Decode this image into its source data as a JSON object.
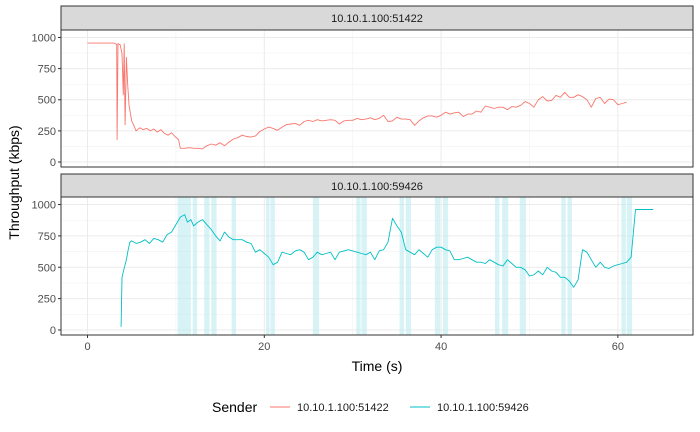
{
  "chart_data": {
    "type": "line",
    "facet_by": "Sender",
    "xlabel": "Time (s)",
    "ylabel": "Throughput (kbps)",
    "xlim": [
      -3,
      68.5
    ],
    "ylim": [
      -40,
      1060
    ],
    "x_ticks": [
      0,
      20,
      40,
      60
    ],
    "y_ticks": [
      0,
      250,
      500,
      750,
      1000
    ],
    "grid": true,
    "legend": {
      "title": "Sender",
      "position": "bottom",
      "entries": [
        "10.10.1.100:51422",
        "10.10.1.100:59426"
      ]
    },
    "colors": {
      "10.10.1.100:51422": "#F8766D",
      "10.10.1.100:59426": "#00BFC4",
      "highlight": "#BDEBF0"
    },
    "panels": [
      {
        "strip_label": "10.10.1.100:51422",
        "series": {
          "name": "10.10.1.100:51422",
          "color": "#F8766D",
          "points": [
            [
              0,
              955
            ],
            [
              3,
              955
            ],
            [
              3.3,
              945
            ],
            [
              3.35,
              180
            ],
            [
              3.45,
              950
            ],
            [
              3.7,
              940
            ],
            [
              3.9,
              870
            ],
            [
              4.05,
              540
            ],
            [
              4.15,
              950
            ],
            [
              4.25,
              300
            ],
            [
              4.4,
              840
            ],
            [
              4.55,
              620
            ],
            [
              4.7,
              450
            ],
            [
              4.85,
              390
            ],
            [
              5,
              330
            ],
            [
              5.2,
              300
            ],
            [
              5.5,
              250
            ],
            [
              5.9,
              275
            ],
            [
              6.3,
              260
            ],
            [
              6.7,
              270
            ],
            [
              7.1,
              250
            ],
            [
              7.5,
              265
            ],
            [
              7.9,
              240
            ],
            [
              8.3,
              260
            ],
            [
              8.7,
              230
            ],
            [
              9.1,
              215
            ],
            [
              9.5,
              235
            ],
            [
              9.9,
              205
            ],
            [
              10.3,
              180
            ],
            [
              10.5,
              110
            ],
            [
              11,
              110
            ],
            [
              11.5,
              115
            ],
            [
              12,
              110
            ],
            [
              12.5,
              110
            ],
            [
              13,
              105
            ],
            [
              13.5,
              130
            ],
            [
              14,
              145
            ],
            [
              14.5,
              135
            ],
            [
              15,
              155
            ],
            [
              15.5,
              130
            ],
            [
              16,
              160
            ],
            [
              16.5,
              185
            ],
            [
              17,
              195
            ],
            [
              17.5,
              215
            ],
            [
              18,
              205
            ],
            [
              18.5,
              200
            ],
            [
              19,
              210
            ],
            [
              19.5,
              245
            ],
            [
              20,
              265
            ],
            [
              20.5,
              280
            ],
            [
              21,
              270
            ],
            [
              21.5,
              255
            ],
            [
              22,
              280
            ],
            [
              22.5,
              300
            ],
            [
              23,
              305
            ],
            [
              23.5,
              310
            ],
            [
              24,
              295
            ],
            [
              24.5,
              325
            ],
            [
              25,
              335
            ],
            [
              25.5,
              325
            ],
            [
              26,
              340
            ],
            [
              26.5,
              330
            ],
            [
              27,
              335
            ],
            [
              27.5,
              340
            ],
            [
              28,
              335
            ],
            [
              28.5,
              305
            ],
            [
              29,
              330
            ],
            [
              29.5,
              335
            ],
            [
              30,
              335
            ],
            [
              30.5,
              350
            ],
            [
              31,
              340
            ],
            [
              31.5,
              345
            ],
            [
              32,
              355
            ],
            [
              32.5,
              340
            ],
            [
              33,
              350
            ],
            [
              33.5,
              375
            ],
            [
              34,
              325
            ],
            [
              34.5,
              330
            ],
            [
              35,
              360
            ],
            [
              35.5,
              345
            ],
            [
              36,
              345
            ],
            [
              36.5,
              340
            ],
            [
              37,
              295
            ],
            [
              37.5,
              330
            ],
            [
              38,
              355
            ],
            [
              38.5,
              370
            ],
            [
              39,
              370
            ],
            [
              39.5,
              360
            ],
            [
              40,
              375
            ],
            [
              40.5,
              400
            ],
            [
              41,
              385
            ],
            [
              41.5,
              395
            ],
            [
              42,
              400
            ],
            [
              42.5,
              365
            ],
            [
              43,
              385
            ],
            [
              43.5,
              385
            ],
            [
              44,
              410
            ],
            [
              44.5,
              400
            ],
            [
              45,
              450
            ],
            [
              45.5,
              440
            ],
            [
              46,
              430
            ],
            [
              46.5,
              440
            ],
            [
              47,
              440
            ],
            [
              47.5,
              420
            ],
            [
              48,
              445
            ],
            [
              48.5,
              440
            ],
            [
              49,
              455
            ],
            [
              49.5,
              485
            ],
            [
              50,
              470
            ],
            [
              50.5,
              440
            ],
            [
              51,
              500
            ],
            [
              51.5,
              525
            ],
            [
              52,
              490
            ],
            [
              52.5,
              495
            ],
            [
              53,
              535
            ],
            [
              53.5,
              520
            ],
            [
              54,
              560
            ],
            [
              54.5,
              520
            ],
            [
              55,
              520
            ],
            [
              55.5,
              540
            ],
            [
              56,
              525
            ],
            [
              56.5,
              500
            ],
            [
              57,
              440
            ],
            [
              57.5,
              510
            ],
            [
              58,
              520
            ],
            [
              58.5,
              470
            ],
            [
              59,
              505
            ],
            [
              59.5,
              500
            ],
            [
              60,
              460
            ],
            [
              60.5,
              470
            ],
            [
              61,
              480
            ]
          ]
        }
      },
      {
        "strip_label": "10.10.1.100:59426",
        "series": {
          "name": "10.10.1.100:59426",
          "color": "#00BFC4",
          "points": [
            [
              3.8,
              25
            ],
            [
              3.9,
              420
            ],
            [
              4.1,
              480
            ],
            [
              4.4,
              560
            ],
            [
              4.6,
              640
            ],
            [
              4.8,
              700
            ],
            [
              5,
              710
            ],
            [
              5.5,
              690
            ],
            [
              6,
              700
            ],
            [
              6.5,
              720
            ],
            [
              7,
              690
            ],
            [
              7.5,
              730
            ],
            [
              8,
              720
            ],
            [
              8.5,
              700
            ],
            [
              9,
              760
            ],
            [
              9.5,
              780
            ],
            [
              10,
              840
            ],
            [
              10.5,
              900
            ],
            [
              11,
              920
            ],
            [
              11.3,
              860
            ],
            [
              11.7,
              880
            ],
            [
              12,
              830
            ],
            [
              12.5,
              860
            ],
            [
              13,
              880
            ],
            [
              13.5,
              840
            ],
            [
              14,
              800
            ],
            [
              14.5,
              750
            ],
            [
              15,
              710
            ],
            [
              15.5,
              780
            ],
            [
              16,
              740
            ],
            [
              16.5,
              720
            ],
            [
              17,
              720
            ],
            [
              17.5,
              720
            ],
            [
              18,
              700
            ],
            [
              18.5,
              690
            ],
            [
              19,
              620
            ],
            [
              19.5,
              640
            ],
            [
              20,
              610
            ],
            [
              20.5,
              580
            ],
            [
              21,
              520
            ],
            [
              21.5,
              540
            ],
            [
              22,
              620
            ],
            [
              22.5,
              610
            ],
            [
              23,
              600
            ],
            [
              23.5,
              630
            ],
            [
              24,
              640
            ],
            [
              24.5,
              620
            ],
            [
              25,
              560
            ],
            [
              25.5,
              580
            ],
            [
              26,
              620
            ],
            [
              26.5,
              600
            ],
            [
              27,
              610
            ],
            [
              27.5,
              620
            ],
            [
              28,
              560
            ],
            [
              28.5,
              620
            ],
            [
              29,
              630
            ],
            [
              29.5,
              640
            ],
            [
              30,
              630
            ],
            [
              30.5,
              620
            ],
            [
              31,
              610
            ],
            [
              31.5,
              600
            ],
            [
              32,
              620
            ],
            [
              32.5,
              560
            ],
            [
              33,
              630
            ],
            [
              33.5,
              640
            ],
            [
              34,
              700
            ],
            [
              34.5,
              890
            ],
            [
              35,
              830
            ],
            [
              35.5,
              780
            ],
            [
              36,
              640
            ],
            [
              36.5,
              620
            ],
            [
              37,
              600
            ],
            [
              37.5,
              640
            ],
            [
              38,
              610
            ],
            [
              38.5,
              580
            ],
            [
              39,
              640
            ],
            [
              39.5,
              660
            ],
            [
              40,
              660
            ],
            [
              40.5,
              640
            ],
            [
              41,
              630
            ],
            [
              41.5,
              560
            ],
            [
              42,
              560
            ],
            [
              42.5,
              570
            ],
            [
              43,
              580
            ],
            [
              43.5,
              560
            ],
            [
              44,
              540
            ],
            [
              44.5,
              540
            ],
            [
              45,
              530
            ],
            [
              45.5,
              560
            ],
            [
              46,
              540
            ],
            [
              46.5,
              520
            ],
            [
              47,
              510
            ],
            [
              47.5,
              560
            ],
            [
              48,
              530
            ],
            [
              48.5,
              500
            ],
            [
              49,
              500
            ],
            [
              49.5,
              480
            ],
            [
              50,
              430
            ],
            [
              50.5,
              440
            ],
            [
              51,
              470
            ],
            [
              51.5,
              440
            ],
            [
              52,
              500
            ],
            [
              52.5,
              470
            ],
            [
              53,
              460
            ],
            [
              53.5,
              420
            ],
            [
              54,
              420
            ],
            [
              54.5,
              390
            ],
            [
              55,
              340
            ],
            [
              55.5,
              400
            ],
            [
              56,
              640
            ],
            [
              56.5,
              620
            ],
            [
              57,
              560
            ],
            [
              57.5,
              500
            ],
            [
              58,
              540
            ],
            [
              58.5,
              500
            ],
            [
              59,
              490
            ],
            [
              59.5,
              510
            ],
            [
              60,
              520
            ],
            [
              60.5,
              530
            ],
            [
              61,
              540
            ],
            [
              61.5,
              580
            ],
            [
              62,
              960
            ],
            [
              64,
              960
            ]
          ]
        },
        "highlight_bands_x": [
          [
            10.2,
            11.7
          ],
          [
            11.9,
            12.4
          ],
          [
            13.2,
            13.8
          ],
          [
            14,
            14.6
          ],
          [
            16.3,
            16.8
          ],
          [
            20.2,
            20.6
          ],
          [
            20.7,
            21.2
          ],
          [
            25.5,
            26.2
          ],
          [
            30.4,
            30.9
          ],
          [
            31,
            31.6
          ],
          [
            35.3,
            35.8
          ],
          [
            36,
            36.6
          ],
          [
            39.3,
            39.9
          ],
          [
            40.2,
            40.8
          ],
          [
            46.1,
            46.6
          ],
          [
            46.9,
            47.6
          ],
          [
            48.9,
            49.6
          ],
          [
            53.6,
            54.1
          ],
          [
            54.3,
            54.8
          ],
          [
            60.4,
            60.9
          ],
          [
            61,
            61.6
          ]
        ]
      }
    ]
  }
}
